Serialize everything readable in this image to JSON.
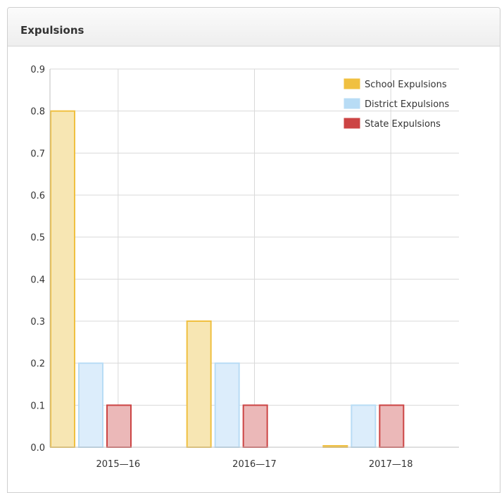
{
  "panel": {
    "title": "Expulsions"
  },
  "chart_data": {
    "type": "bar",
    "categories": [
      "2015—16",
      "2016—17",
      "2017—18"
    ],
    "series": [
      {
        "name": "School Expulsions",
        "values": [
          0.8,
          0.3,
          0.0
        ],
        "color": "#f0c040",
        "fill": "#f7e6b3"
      },
      {
        "name": "District Expulsions",
        "values": [
          0.2,
          0.2,
          0.1
        ],
        "color": "#b8dcf5",
        "fill": "#dcedfb"
      },
      {
        "name": "State Expulsions",
        "values": [
          0.1,
          0.1,
          0.1
        ],
        "color": "#cc4444",
        "fill": "#ebb8b8"
      }
    ],
    "y_ticks": [
      "0.0",
      "0.1",
      "0.2",
      "0.3",
      "0.4",
      "0.5",
      "0.6",
      "0.7",
      "0.8",
      "0.9"
    ],
    "ylim": [
      0,
      0.9
    ],
    "grid": true,
    "legend_position": "top-right",
    "title": "",
    "xlabel": "",
    "ylabel": ""
  }
}
